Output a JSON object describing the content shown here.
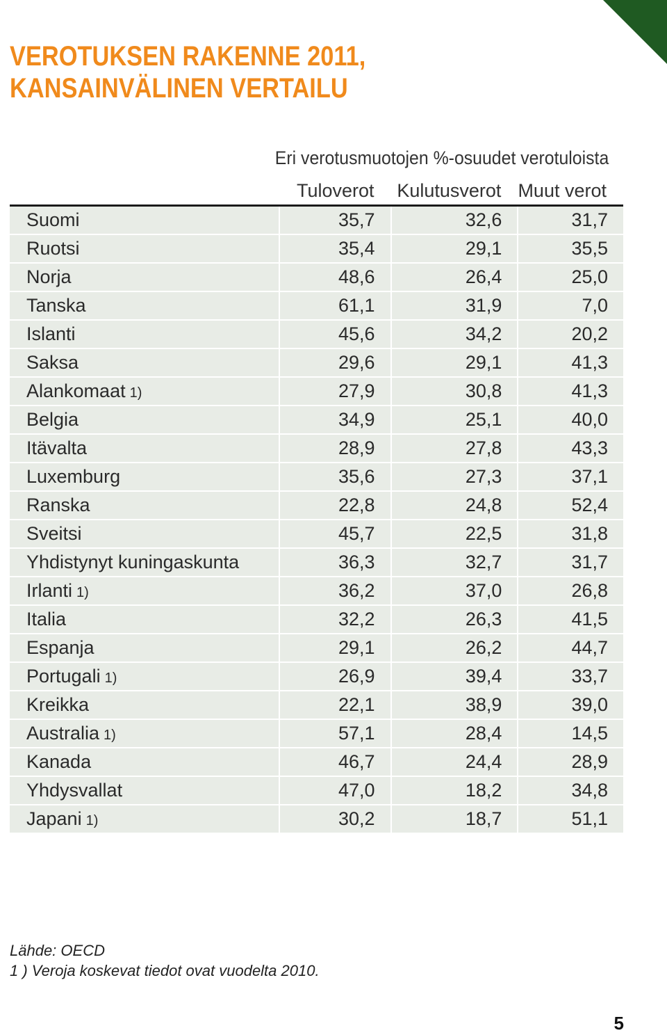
{
  "title": {
    "line1": "VEROTUKSEN RAKENNE 2011,",
    "line2": "KANSAINVÄLINEN VERTAILU"
  },
  "table": {
    "caption": "Eri verotusmuotojen %-osuudet verotuloista",
    "headers": [
      "Tuloverot",
      "Kulutusverot",
      "Muut verot"
    ],
    "rows": [
      {
        "country": "Suomi",
        "note": "",
        "values": [
          "35,7",
          "32,6",
          "31,7"
        ]
      },
      {
        "country": "Ruotsi",
        "note": "",
        "values": [
          "35,4",
          "29,1",
          "35,5"
        ]
      },
      {
        "country": "Norja",
        "note": "",
        "values": [
          "48,6",
          "26,4",
          "25,0"
        ]
      },
      {
        "country": "Tanska",
        "note": "",
        "values": [
          "61,1",
          "31,9",
          "7,0"
        ]
      },
      {
        "country": "Islanti",
        "note": "",
        "values": [
          "45,6",
          "34,2",
          "20,2"
        ]
      },
      {
        "country": "Saksa",
        "note": "",
        "values": [
          "29,6",
          "29,1",
          "41,3"
        ]
      },
      {
        "country": "Alankomaat",
        "note": "1)",
        "values": [
          "27,9",
          "30,8",
          "41,3"
        ]
      },
      {
        "country": "Belgia",
        "note": "",
        "values": [
          "34,9",
          "25,1",
          "40,0"
        ]
      },
      {
        "country": "Itävalta",
        "note": "",
        "values": [
          "28,9",
          "27,8",
          "43,3"
        ]
      },
      {
        "country": "Luxemburg",
        "note": "",
        "values": [
          "35,6",
          "27,3",
          "37,1"
        ]
      },
      {
        "country": "Ranska",
        "note": "",
        "values": [
          "22,8",
          "24,8",
          "52,4"
        ]
      },
      {
        "country": "Sveitsi",
        "note": "",
        "values": [
          "45,7",
          "22,5",
          "31,8"
        ]
      },
      {
        "country": "Yhdistynyt kuningaskunta",
        "note": "",
        "values": [
          "36,3",
          "32,7",
          "31,7"
        ]
      },
      {
        "country": "Irlanti",
        "note": "1)",
        "values": [
          "36,2",
          "37,0",
          "26,8"
        ]
      },
      {
        "country": "Italia",
        "note": "",
        "values": [
          "32,2",
          "26,3",
          "41,5"
        ]
      },
      {
        "country": "Espanja",
        "note": "",
        "values": [
          "29,1",
          "26,2",
          "44,7"
        ]
      },
      {
        "country": "Portugali",
        "note": "1)",
        "values": [
          "26,9",
          "39,4",
          "33,7"
        ]
      },
      {
        "country": "Kreikka",
        "note": "",
        "values": [
          "22,1",
          "38,9",
          "39,0"
        ]
      },
      {
        "country": "Australia",
        "note": "1)",
        "values": [
          "57,1",
          "28,4",
          "14,5"
        ]
      },
      {
        "country": "Kanada",
        "note": "",
        "values": [
          "46,7",
          "24,4",
          "28,9"
        ]
      },
      {
        "country": "Yhdysvallat",
        "note": "",
        "values": [
          "47,0",
          "18,2",
          "34,8"
        ]
      },
      {
        "country": "Japani",
        "note": "1)",
        "values": [
          "30,2",
          "18,7",
          "51,1"
        ]
      }
    ]
  },
  "footer": {
    "source": "Lähde: OECD",
    "footnote": "1 ) Veroja koskevat tiedot ovat vuodelta 2010."
  },
  "page_number": "5",
  "colors": {
    "title": "#f08a1c",
    "corner": "#1f5a22",
    "row_bg": "#e8ece6"
  }
}
